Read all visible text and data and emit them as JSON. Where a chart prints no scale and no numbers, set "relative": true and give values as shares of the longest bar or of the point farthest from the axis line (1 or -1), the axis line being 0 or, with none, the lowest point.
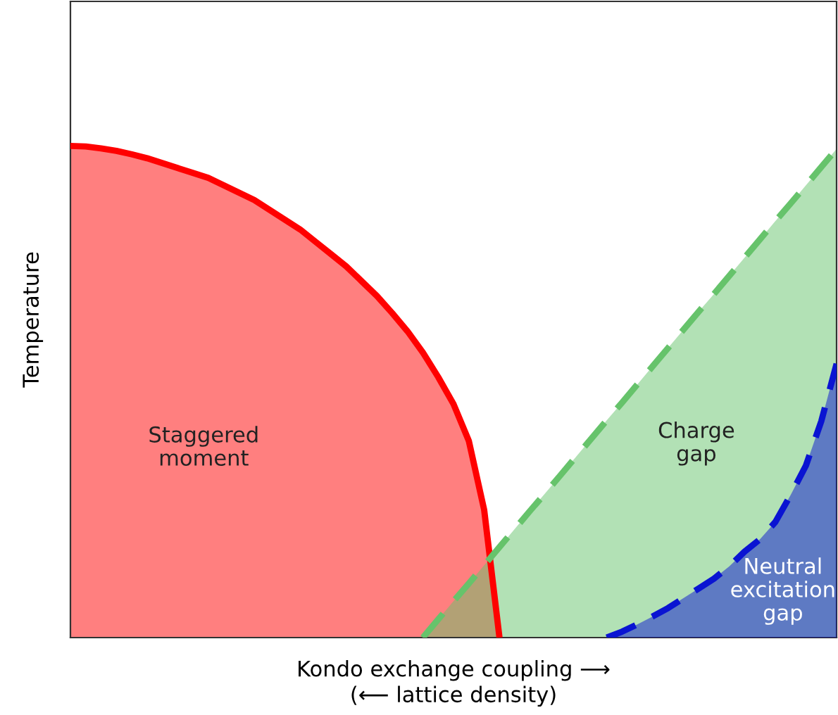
{
  "chart_data": {
    "type": "area",
    "relative": true,
    "xlabel": "Kondo exchange coupling ⟶\n(⟵ lattice density)",
    "ylabel": "Temperature",
    "categories": [
      null,
      null,
      null,
      null,
      null,
      null,
      null,
      null,
      null,
      null,
      null,
      null,
      null,
      null,
      null,
      null,
      null,
      null,
      null,
      null,
      null,
      null,
      null,
      null,
      null,
      null,
      null,
      null,
      null,
      null,
      null,
      null,
      null,
      null,
      null,
      null,
      null,
      null,
      null,
      null,
      null,
      null,
      null,
      null,
      null,
      null,
      null,
      null,
      null,
      null,
      null
    ],
    "series": [
      {
        "color": "#ff0000",
        "line_style": "solid",
        "values": [
          1.0,
          0.999,
          0.995,
          0.99,
          0.983,
          0.975,
          0.965,
          0.955,
          0.945,
          0.935,
          0.92,
          0.905,
          0.89,
          0.87,
          0.85,
          0.83,
          0.805,
          0.78,
          0.755,
          0.725,
          0.695,
          0.66,
          0.623,
          0.58,
          0.53,
          0.475,
          0.4,
          0.26,
          0,
          null,
          null,
          null,
          null,
          null,
          null,
          null,
          null,
          null,
          null,
          null,
          null,
          null,
          null,
          null,
          null,
          null,
          null,
          null,
          null,
          null,
          null
        ]
      },
      {
        "color": "#66c36b",
        "line_style": "dashed",
        "values": [
          null,
          null,
          null,
          null,
          null,
          null,
          null,
          null,
          null,
          null,
          null,
          null,
          null,
          null,
          null,
          null,
          null,
          null,
          null,
          null,
          null,
          null,
          null,
          0,
          0.037,
          0.074,
          0.11,
          0.147,
          0.184,
          0.221,
          0.258,
          0.294,
          0.331,
          0.368,
          0.405,
          0.442,
          0.478,
          0.515,
          0.552,
          0.589,
          0.626,
          0.663,
          0.699,
          0.736,
          0.773,
          0.81,
          0.847,
          0.883,
          0.92,
          0.957,
          0.994
        ]
      },
      {
        "color": "#0a14d2",
        "line_style": "dashed",
        "values": [
          null,
          null,
          null,
          null,
          null,
          null,
          null,
          null,
          null,
          null,
          null,
          null,
          null,
          null,
          null,
          null,
          null,
          null,
          null,
          null,
          null,
          null,
          null,
          null,
          null,
          null,
          null,
          null,
          null,
          null,
          null,
          null,
          null,
          null,
          null,
          0,
          0.012,
          0.027,
          0.043,
          0.06,
          0.08,
          0.1,
          0.12,
          0.145,
          0.175,
          0.2,
          0.235,
          0.29,
          0.35,
          0.44,
          0.557
        ]
      }
    ],
    "annotations": [
      "Staggered\nmoment",
      "Charge\ngap",
      "Neutral\nexcitation\ngap"
    ]
  }
}
